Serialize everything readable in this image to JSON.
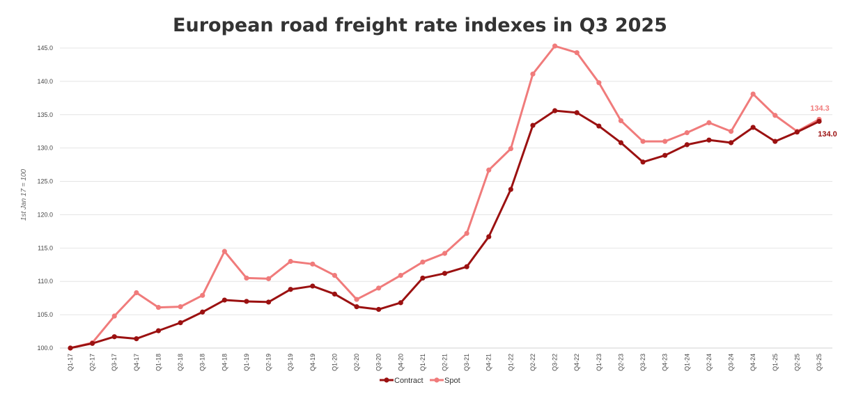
{
  "chart_data": {
    "type": "line",
    "title": "European road freight rate indexes in Q3 2025",
    "ylabel": "1st Jan 17 = 100",
    "xlabel": "",
    "ylim": [
      100,
      145
    ],
    "yticks": [
      "100.0",
      "105.0",
      "110.0",
      "115.0",
      "120.0",
      "125.0",
      "130.0",
      "135.0",
      "140.0",
      "145.0"
    ],
    "grid": true,
    "legend": "bottom",
    "categories": [
      "Q1-17",
      "Q2-17",
      "Q3-17",
      "Q4-17",
      "Q1-18",
      "Q2-18",
      "Q3-18",
      "Q4-18",
      "Q1-19",
      "Q2-19",
      "Q3-19",
      "Q4-19",
      "Q1-20",
      "Q2-20",
      "Q3-20",
      "Q4-20",
      "Q1-21",
      "Q2-21",
      "Q3-21",
      "Q4-21",
      "Q1-22",
      "Q2-22",
      "Q3-22",
      "Q4-22",
      "Q1-23",
      "Q2-23",
      "Q3-23",
      "Q4-23",
      "Q1-24",
      "Q2-24",
      "Q3-24",
      "Q4-24",
      "Q1-25",
      "Q2-25",
      "Q3-25"
    ],
    "series": [
      {
        "name": "Contract",
        "color": "#9b1111",
        "values": [
          100.0,
          100.7,
          101.7,
          101.4,
          102.6,
          103.8,
          105.4,
          107.2,
          107.0,
          106.9,
          108.8,
          109.3,
          108.1,
          106.2,
          105.8,
          106.8,
          110.5,
          111.2,
          112.2,
          116.7,
          123.8,
          133.4,
          135.6,
          135.3,
          133.3,
          130.8,
          127.9,
          128.9,
          130.5,
          131.2,
          130.8,
          133.1,
          131.0,
          132.4,
          134.0
        ],
        "end_label": "134.0"
      },
      {
        "name": "Spot",
        "color": "#f07b7b",
        "values": [
          100.0,
          100.8,
          104.8,
          108.3,
          106.1,
          106.2,
          107.9,
          114.5,
          110.5,
          110.4,
          113.0,
          112.6,
          110.9,
          107.3,
          109.0,
          110.9,
          112.9,
          114.2,
          117.2,
          126.7,
          129.9,
          141.1,
          145.3,
          144.3,
          139.8,
          134.1,
          131.0,
          131.0,
          132.3,
          133.8,
          132.5,
          138.1,
          134.9,
          132.5,
          134.3
        ],
        "end_label": "134.3"
      }
    ]
  }
}
